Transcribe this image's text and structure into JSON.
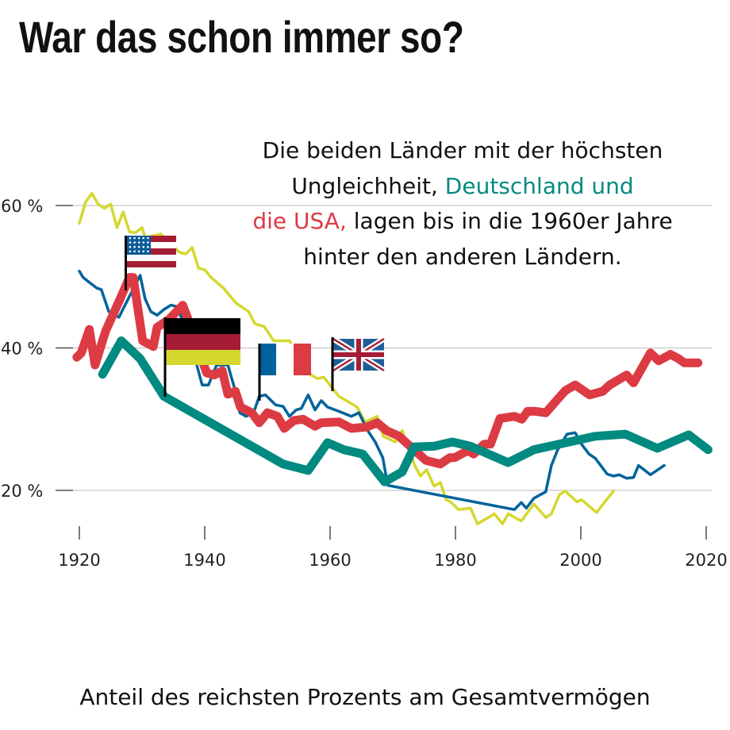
{
  "title": "War das schon immer so?",
  "annotation": {
    "line1": "Die beiden Länder mit der höchsten",
    "line2_a": "Ungleichheit, ",
    "line2_b": "Deutschland und",
    "line3_a": "die USA,",
    "line3_b": " lagen bis in die 1960er Jahre",
    "line4": "hinter den anderen Ländern."
  },
  "caption": "Anteil des reichsten Prozents am Gesamtvermögen",
  "chart_data": {
    "type": "line",
    "title": "War das schon immer so?",
    "xlabel": "",
    "ylabel": "",
    "xlim": [
      1920,
      2020
    ],
    "ylim": [
      20,
      60
    ],
    "x_ticks": [
      1920,
      1940,
      1960,
      1980,
      2000,
      2020
    ],
    "x_tick_labels": [
      "1920",
      "1940",
      "1960",
      "1980",
      "2000",
      "2020"
    ],
    "y_ticks": [
      20,
      40,
      60
    ],
    "y_tick_labels": [
      "20 %",
      "40 %",
      "60 %"
    ],
    "grid": "horizontal",
    "legend": "flags",
    "series": [
      {
        "country": "UK",
        "flag": "uk-flag",
        "color": "#d4d82e",
        "points": [
          [
            1920,
            57.5
          ],
          [
            1921,
            60.5
          ],
          [
            1922,
            61.7
          ],
          [
            1923,
            60.2
          ],
          [
            1924,
            59.6
          ],
          [
            1925,
            60.2
          ],
          [
            1926,
            56.9
          ],
          [
            1927,
            59.1
          ],
          [
            1928,
            56.3
          ],
          [
            1929,
            56.2
          ],
          [
            1930,
            56.9
          ],
          [
            1930.5,
            55.5
          ],
          [
            1933,
            56.0
          ],
          [
            1936,
            53.4
          ],
          [
            1937,
            53.2
          ],
          [
            1938,
            54.1
          ],
          [
            1939,
            51.2
          ],
          [
            1940,
            51.0
          ],
          [
            1941,
            49.9
          ],
          [
            1943,
            48.4
          ],
          [
            1945,
            46.3
          ],
          [
            1947,
            45.1
          ],
          [
            1948,
            43.4
          ],
          [
            1949.5,
            43.0
          ],
          [
            1951,
            41.0
          ],
          [
            1953.5,
            41.0
          ],
          [
            1957,
            36.2
          ],
          [
            1958,
            35.7
          ],
          [
            1959,
            35.9
          ],
          [
            1961.4,
            33.2
          ],
          [
            1963,
            32.4
          ],
          [
            1964.3,
            31.7
          ],
          [
            1965.6,
            29.6
          ],
          [
            1967.5,
            30.4
          ],
          [
            1968.5,
            27.6
          ],
          [
            1970.4,
            26.8
          ],
          [
            1971.5,
            28.4
          ],
          [
            1973.5,
            23.5
          ],
          [
            1974.4,
            22.0
          ],
          [
            1975.4,
            22.9
          ],
          [
            1976.6,
            20.6
          ],
          [
            1977.6,
            21.1
          ],
          [
            1978.5,
            18.7
          ],
          [
            1979.2,
            18.4
          ],
          [
            1980.5,
            17.3
          ],
          [
            1982.4,
            17.5
          ],
          [
            1983.5,
            15.3
          ],
          [
            1986.2,
            16.7
          ],
          [
            1987.5,
            15.3
          ],
          [
            1988.4,
            16.7
          ],
          [
            1990.5,
            15.7
          ],
          [
            1992.5,
            18.1
          ],
          [
            1994.4,
            16.2
          ],
          [
            1995.3,
            16.7
          ],
          [
            1996.6,
            19.4
          ],
          [
            1997.5,
            19.9
          ],
          [
            1999.4,
            18.4
          ],
          [
            2000.1,
            18.7
          ],
          [
            2002.5,
            16.9
          ],
          [
            2005.2,
            19.9
          ]
        ]
      },
      {
        "country": "Frankreich",
        "flag": "france-flag",
        "color": "#00639c",
        "points": [
          [
            1920,
            50.8
          ],
          [
            1920.6,
            49.9
          ],
          [
            1921.6,
            49.2
          ],
          [
            1922.8,
            48.4
          ],
          [
            1923.5,
            48.2
          ],
          [
            1924.7,
            45.1
          ],
          [
            1926.3,
            44.3
          ],
          [
            1929.7,
            50.2
          ],
          [
            1930.5,
            46.9
          ],
          [
            1931.4,
            45.1
          ],
          [
            1932.4,
            44.6
          ],
          [
            1933.5,
            45.4
          ],
          [
            1934.6,
            46.0
          ],
          [
            1935.6,
            45.8
          ],
          [
            1937.7,
            41.0
          ],
          [
            1939.6,
            34.8
          ],
          [
            1940.6,
            34.8
          ],
          [
            1941.9,
            37.6
          ],
          [
            1943.7,
            37.6
          ],
          [
            1944.9,
            33.9
          ],
          [
            1945.6,
            30.9
          ],
          [
            1946.6,
            30.4
          ],
          [
            1947.8,
            30.9
          ],
          [
            1948.7,
            33.2
          ],
          [
            1949.7,
            33.4
          ],
          [
            1951.3,
            32.0
          ],
          [
            1952.5,
            31.8
          ],
          [
            1953.5,
            30.4
          ],
          [
            1954.6,
            31.3
          ],
          [
            1955.4,
            31.5
          ],
          [
            1956.5,
            33.4
          ],
          [
            1957.6,
            31.3
          ],
          [
            1958.6,
            32.6
          ],
          [
            1959.6,
            31.7
          ],
          [
            1961.4,
            31.1
          ],
          [
            1963.4,
            30.4
          ],
          [
            1964.6,
            30.9
          ],
          [
            1966.0,
            28.4
          ],
          [
            1967.2,
            26.8
          ],
          [
            1968.4,
            24.6
          ],
          [
            1969.2,
            20.7
          ],
          [
            1989.4,
            17.3
          ],
          [
            1990.5,
            18.3
          ],
          [
            1991.3,
            17.5
          ],
          [
            1992.5,
            18.9
          ],
          [
            1994.4,
            19.8
          ],
          [
            1995.3,
            23.5
          ],
          [
            1996.3,
            25.7
          ],
          [
            1997.8,
            27.9
          ],
          [
            1999.1,
            28.1
          ],
          [
            2000.1,
            26.5
          ],
          [
            2001.3,
            25.1
          ],
          [
            2002.3,
            24.5
          ],
          [
            2004.2,
            22.3
          ],
          [
            2005.2,
            22.0
          ],
          [
            2006.1,
            22.2
          ],
          [
            2007.3,
            21.7
          ],
          [
            2008.4,
            21.8
          ],
          [
            2009.2,
            23.5
          ],
          [
            2011.1,
            22.2
          ],
          [
            2013.3,
            23.5
          ]
        ]
      },
      {
        "country": "USA",
        "flag": "usa-flag",
        "color": "#dc3b43",
        "points": [
          [
            1919.6,
            38.7
          ],
          [
            1920.3,
            39.3
          ],
          [
            1921.6,
            42.6
          ],
          [
            1922.5,
            37.6
          ],
          [
            1924.2,
            42.4
          ],
          [
            1926.3,
            46.5
          ],
          [
            1928.0,
            49.9
          ],
          [
            1928.6,
            49.9
          ],
          [
            1930.1,
            41.0
          ],
          [
            1931.8,
            40.2
          ],
          [
            1932.4,
            42.9
          ],
          [
            1934.3,
            44.0
          ],
          [
            1936.5,
            46.0
          ],
          [
            1937.7,
            43.2
          ],
          [
            1939.0,
            39.8
          ],
          [
            1940.3,
            36.5
          ],
          [
            1941.5,
            36.2
          ],
          [
            1942.8,
            36.8
          ],
          [
            1943.7,
            33.5
          ],
          [
            1944.9,
            33.9
          ],
          [
            1945.7,
            31.7
          ],
          [
            1947.5,
            30.9
          ],
          [
            1948.7,
            29.5
          ],
          [
            1950.0,
            30.9
          ],
          [
            1951.6,
            30.4
          ],
          [
            1952.7,
            28.7
          ],
          [
            1954.2,
            29.8
          ],
          [
            1955.7,
            30.0
          ],
          [
            1957.6,
            29.0
          ],
          [
            1958.6,
            29.5
          ],
          [
            1961.4,
            29.6
          ],
          [
            1963.4,
            28.7
          ],
          [
            1965.9,
            28.9
          ],
          [
            1967.5,
            29.5
          ],
          [
            1969.0,
            28.4
          ],
          [
            1971.0,
            27.6
          ],
          [
            1973.5,
            25.6
          ],
          [
            1975.3,
            24.2
          ],
          [
            1977.6,
            23.7
          ],
          [
            1979.1,
            24.6
          ],
          [
            1979.9,
            24.6
          ],
          [
            1982.0,
            25.6
          ],
          [
            1982.9,
            25.1
          ],
          [
            1984.6,
            26.5
          ],
          [
            1985.6,
            26.5
          ],
          [
            1987.1,
            30.1
          ],
          [
            1989.4,
            30.4
          ],
          [
            1990.6,
            30.0
          ],
          [
            1991.5,
            31.1
          ],
          [
            1992.8,
            31.1
          ],
          [
            1994.4,
            30.9
          ],
          [
            1997.5,
            34.0
          ],
          [
            1999.1,
            34.8
          ],
          [
            2001.4,
            33.4
          ],
          [
            2003.5,
            33.9
          ],
          [
            2004.6,
            34.8
          ],
          [
            2007.3,
            36.2
          ],
          [
            2008.4,
            35.1
          ],
          [
            2011.1,
            39.3
          ],
          [
            2012.4,
            38.2
          ],
          [
            2014.3,
            39.1
          ],
          [
            2015.6,
            38.5
          ],
          [
            2016.5,
            37.9
          ],
          [
            2018.7,
            37.9
          ]
        ]
      },
      {
        "country": "Deutschland",
        "flag": "germany-flag",
        "color": "#008a80",
        "points": [
          [
            1923.7,
            36.3
          ],
          [
            1926.7,
            41.0
          ],
          [
            1929.7,
            38.5
          ],
          [
            1933.5,
            33.2
          ],
          [
            1952.5,
            23.7
          ],
          [
            1956.5,
            22.8
          ],
          [
            1959.6,
            26.7
          ],
          [
            1962.2,
            25.7
          ],
          [
            1965.2,
            25.1
          ],
          [
            1968.7,
            21.2
          ],
          [
            1971.5,
            22.6
          ],
          [
            1973.4,
            26.1
          ],
          [
            1976.6,
            26.2
          ],
          [
            1979.5,
            26.8
          ],
          [
            1982.4,
            26.2
          ],
          [
            1988.4,
            23.9
          ],
          [
            1992.5,
            25.7
          ],
          [
            2002.3,
            27.6
          ],
          [
            2007.1,
            27.9
          ],
          [
            2012.2,
            25.9
          ],
          [
            2017.2,
            27.8
          ],
          [
            2020.3,
            25.7
          ]
        ]
      }
    ]
  }
}
